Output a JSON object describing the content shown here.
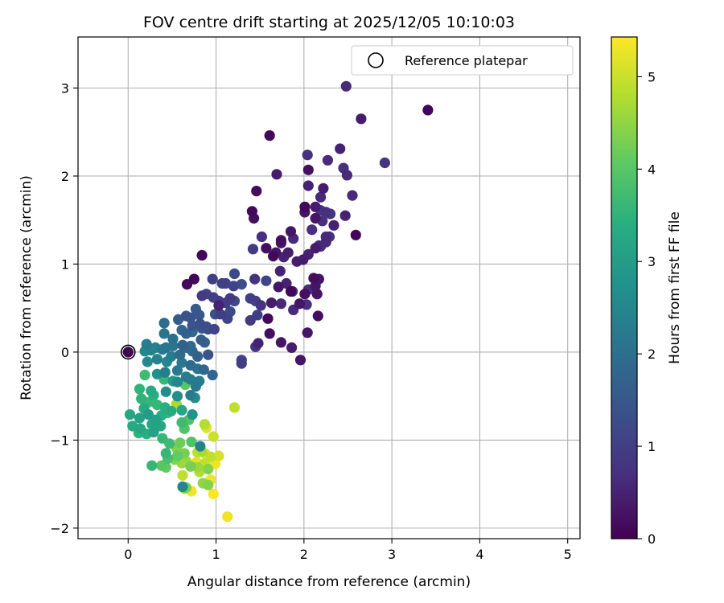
{
  "chart_data": {
    "type": "scatter",
    "title": "FOV centre drift starting at 2025/12/05 10:10:03",
    "xlabel": "Angular distance from reference (arcmin)",
    "ylabel": "Rotation from reference (arcmin)",
    "xlim": [
      -0.57,
      5.14
    ],
    "ylim": [
      -2.12,
      3.58
    ],
    "xticks": [
      0,
      1,
      2,
      3,
      4,
      5
    ],
    "xtick_labels": [
      "0",
      "1",
      "2",
      "3",
      "4",
      "5"
    ],
    "yticks": [
      -2,
      -1,
      0,
      1,
      2,
      3
    ],
    "ytick_labels": [
      "−2",
      "−1",
      "0",
      "1",
      "2",
      "3"
    ],
    "grid": true,
    "legend": {
      "position": "top-right",
      "label": "Reference platepar"
    },
    "colorbar": {
      "label": "Hours from first FF file",
      "min": 0,
      "max": 5.43,
      "ticks": [
        0,
        1,
        2,
        3,
        4,
        5
      ],
      "tick_labels": [
        "0",
        "1",
        "2",
        "3",
        "4",
        "5"
      ],
      "colormap": "viridis"
    },
    "reference_point": {
      "x": 0,
      "y": 0
    },
    "points": [
      [
        3.41,
        2.75,
        0.05
      ],
      [
        2.48,
        3.02,
        0.6
      ],
      [
        2.65,
        2.65,
        0.4
      ],
      [
        2.92,
        2.15,
        0.8
      ],
      [
        1.61,
        2.46,
        0.1
      ],
      [
        2.04,
        2.24,
        0.7
      ],
      [
        2.41,
        2.31,
        0.5
      ],
      [
        2.27,
        2.18,
        0.6
      ],
      [
        2.05,
        2.07,
        0.2
      ],
      [
        2.45,
        2.09,
        0.7
      ],
      [
        2.49,
        2.01,
        0.6
      ],
      [
        1.69,
        2.02,
        0.4
      ],
      [
        2.22,
        1.86,
        0.4
      ],
      [
        2.05,
        1.89,
        0.5
      ],
      [
        2.55,
        1.78,
        0.6
      ],
      [
        1.46,
        1.83,
        0.15
      ],
      [
        2.19,
        1.76,
        0.6
      ],
      [
        2.13,
        1.65,
        0.4
      ],
      [
        2.01,
        1.65,
        0.1
      ],
      [
        2.19,
        1.61,
        0.8
      ],
      [
        2.25,
        1.59,
        0.7
      ],
      [
        2.01,
        1.59,
        0.3
      ],
      [
        1.41,
        1.6,
        0.1
      ],
      [
        2.3,
        1.57,
        0.8
      ],
      [
        2.13,
        1.52,
        0.3
      ],
      [
        1.43,
        1.52,
        0.2
      ],
      [
        2.47,
        1.55,
        0.5
      ],
      [
        2.21,
        1.49,
        0.7
      ],
      [
        2.34,
        1.44,
        0.5
      ],
      [
        2.09,
        1.39,
        0.7
      ],
      [
        1.85,
        1.37,
        0.3
      ],
      [
        1.74,
        1.27,
        0.2
      ],
      [
        1.74,
        1.24,
        0.3
      ],
      [
        2.59,
        1.33,
        0.05
      ],
      [
        1.52,
        1.31,
        0.7
      ],
      [
        2.25,
        1.31,
        0.6
      ],
      [
        2.29,
        1.31,
        0.8
      ],
      [
        1.88,
        1.29,
        0.6
      ],
      [
        2.25,
        1.25,
        0.6
      ],
      [
        2.17,
        1.21,
        0.6
      ],
      [
        2.19,
        1.2,
        0.7
      ],
      [
        2.13,
        1.18,
        0.4
      ],
      [
        1.57,
        1.18,
        0.2
      ],
      [
        1.68,
        1.13,
        0.3
      ],
      [
        1.42,
        1.17,
        0.9
      ],
      [
        1.82,
        1.13,
        0.4
      ],
      [
        2.05,
        1.11,
        0.5
      ],
      [
        1.77,
        1.08,
        0.5
      ],
      [
        1.65,
        1.09,
        0.1
      ],
      [
        1.92,
        1.03,
        0.4
      ],
      [
        0.84,
        1.1,
        0.1
      ],
      [
        1.99,
        1.05,
        0.4
      ],
      [
        1.21,
        0.89,
        1.2
      ],
      [
        1.73,
        0.92,
        0.5
      ],
      [
        1.44,
        0.83,
        0.8
      ],
      [
        1.57,
        0.81,
        1.1
      ],
      [
        1.29,
        0.77,
        1.3
      ],
      [
        1.07,
        0.78,
        1.0
      ],
      [
        0.75,
        0.83,
        0.05
      ],
      [
        1.11,
        0.78,
        1.1
      ],
      [
        1.2,
        0.75,
        1.1
      ],
      [
        0.96,
        0.83,
        1.0
      ],
      [
        0.67,
        0.77,
        0.1
      ],
      [
        1.8,
        0.78,
        0.5
      ],
      [
        2.11,
        0.84,
        0.2
      ],
      [
        2.17,
        0.83,
        0.3
      ],
      [
        1.71,
        0.74,
        0.3
      ],
      [
        1.87,
        0.69,
        0.6
      ],
      [
        2.13,
        0.75,
        0.3
      ],
      [
        2.05,
        0.71,
        0.7
      ],
      [
        0.84,
        0.64,
        0.9
      ],
      [
        0.89,
        0.66,
        1.1
      ],
      [
        0.97,
        0.62,
        1.0
      ],
      [
        1.03,
        0.58,
        1.0
      ],
      [
        2.01,
        0.66,
        0.2
      ],
      [
        1.85,
        0.69,
        0.1
      ],
      [
        2.15,
        0.66,
        0.3
      ],
      [
        1.45,
        0.58,
        1.0
      ],
      [
        1.39,
        0.61,
        1.0
      ],
      [
        1.21,
        0.58,
        1.2
      ],
      [
        1.16,
        0.61,
        0.9
      ],
      [
        1.11,
        0.56,
        1.0
      ],
      [
        1.51,
        0.53,
        0.8
      ],
      [
        1.63,
        0.56,
        0.4
      ],
      [
        1.74,
        0.55,
        0.6
      ],
      [
        1.95,
        0.55,
        0.3
      ],
      [
        2.03,
        0.54,
        0.7
      ],
      [
        1.88,
        0.48,
        0.6
      ],
      [
        1.03,
        0.53,
        0.5
      ],
      [
        0.77,
        0.49,
        1.6
      ],
      [
        0.81,
        0.42,
        1.5
      ],
      [
        0.71,
        0.39,
        1.4
      ],
      [
        0.99,
        0.43,
        1.3
      ],
      [
        1.16,
        0.46,
        1.2
      ],
      [
        1.47,
        0.42,
        1.0
      ],
      [
        1.59,
        0.38,
        0.1
      ],
      [
        1.13,
        0.38,
        1.1
      ],
      [
        1.05,
        0.43,
        1.0
      ],
      [
        1.39,
        0.36,
        0.9
      ],
      [
        2.16,
        0.41,
        0.2
      ],
      [
        0.66,
        0.41,
        1.4
      ],
      [
        0.57,
        0.37,
        1.6
      ],
      [
        0.82,
        0.32,
        1.3
      ],
      [
        0.73,
        0.3,
        1.4
      ],
      [
        0.84,
        0.27,
        1.5
      ],
      [
        0.98,
        0.26,
        1.1
      ],
      [
        0.89,
        0.29,
        1.4
      ],
      [
        0.91,
        0.26,
        1.3
      ],
      [
        0.41,
        0.33,
        1.9
      ],
      [
        0.61,
        0.25,
        1.8
      ],
      [
        0.73,
        0.23,
        1.9
      ],
      [
        0.66,
        0.21,
        1.7
      ],
      [
        0.41,
        0.21,
        2.1
      ],
      [
        0.51,
        0.15,
        2.0
      ],
      [
        0.83,
        0.14,
        1.6
      ],
      [
        0.87,
        0.11,
        1.7
      ],
      [
        1.61,
        0.21,
        0.2
      ],
      [
        2.04,
        0.22,
        0.3
      ],
      [
        1.48,
        0.1,
        0.5
      ],
      [
        1.45,
        0.06,
        0.8
      ],
      [
        1.74,
        0.11,
        0.3
      ],
      [
        1.86,
        0.05,
        0.4
      ],
      [
        1.96,
        -0.09,
        0.3
      ],
      [
        1.29,
        -0.09,
        1.1
      ],
      [
        1.29,
        -0.13,
        1.0
      ],
      [
        0.21,
        0.09,
        2.3
      ],
      [
        0.31,
        0.05,
        2.4
      ],
      [
        0.26,
        0.02,
        2.4
      ],
      [
        0.19,
        0.01,
        2.5
      ],
      [
        0.39,
        0.03,
        2.2
      ],
      [
        0.43,
        0.05,
        2.1
      ],
      [
        0.51,
        0.07,
        2.1
      ],
      [
        0.62,
        0.08,
        1.7
      ],
      [
        0.66,
        0.05,
        1.9
      ],
      [
        0.71,
        0.07,
        1.9
      ],
      [
        0.73,
        0.01,
        1.8
      ],
      [
        0.91,
        -0.03,
        1.4
      ],
      [
        0.79,
        -0.05,
        1.7
      ],
      [
        0.59,
        -0.03,
        1.9
      ],
      [
        0.49,
        -0.05,
        2.3
      ],
      [
        0.33,
        -0.08,
        2.4
      ],
      [
        0.22,
        -0.11,
        2.5
      ],
      [
        0.44,
        -0.11,
        2.5
      ],
      [
        0.61,
        -0.12,
        2.2
      ],
      [
        0.71,
        -0.15,
        1.9
      ],
      [
        0.79,
        -0.19,
        2.1
      ],
      [
        0.86,
        -0.2,
        1.8
      ],
      [
        0.96,
        -0.26,
        1.8
      ],
      [
        0.56,
        -0.21,
        2.2
      ],
      [
        0.42,
        -0.23,
        2.3
      ],
      [
        0.33,
        -0.25,
        2.7
      ],
      [
        0.66,
        -0.28,
        2.3
      ],
      [
        0.71,
        -0.31,
        2.3
      ],
      [
        0.56,
        -0.34,
        2.5
      ],
      [
        0.19,
        -0.26,
        3.7
      ],
      [
        0.41,
        -0.31,
        3.6
      ],
      [
        0.51,
        -0.33,
        2.9
      ],
      [
        0.65,
        -0.37,
        4.0
      ],
      [
        0.77,
        -0.39,
        2.2
      ],
      [
        0.81,
        -0.33,
        2.3
      ],
      [
        0.13,
        -0.42,
        3.5
      ],
      [
        0.26,
        -0.44,
        3.3
      ],
      [
        0.29,
        -0.49,
        3.4
      ],
      [
        0.43,
        -0.45,
        2.6
      ],
      [
        0.56,
        -0.5,
        2.6
      ],
      [
        0.71,
        -0.49,
        2.3
      ],
      [
        0.76,
        -0.52,
        2.6
      ],
      [
        0.55,
        -0.59,
        4.7
      ],
      [
        0.15,
        -0.53,
        3.5
      ],
      [
        0.23,
        -0.57,
        3.6
      ],
      [
        0.33,
        -0.6,
        3.6
      ],
      [
        0.42,
        -0.63,
        3.4
      ],
      [
        0.49,
        -0.67,
        3.3
      ],
      [
        0.61,
        -0.66,
        3.2
      ],
      [
        0.73,
        -0.71,
        2.8
      ],
      [
        0.18,
        -0.64,
        3.3
      ],
      [
        0.02,
        -0.71,
        3.2
      ],
      [
        0.13,
        -0.75,
        3.1
      ],
      [
        0.23,
        -0.71,
        3.0
      ],
      [
        0.31,
        -0.77,
        3.1
      ],
      [
        0.38,
        -0.72,
        3.4
      ],
      [
        0.45,
        -0.69,
        3.7
      ],
      [
        0.27,
        -0.82,
        3.2
      ],
      [
        0.37,
        -0.84,
        3.2
      ],
      [
        0.61,
        -0.8,
        3.7
      ],
      [
        0.69,
        -0.77,
        3.9
      ],
      [
        0.05,
        -0.84,
        3.3
      ],
      [
        0.14,
        -0.87,
        3.2
      ],
      [
        0.29,
        -0.91,
        3.1
      ],
      [
        0.12,
        -0.92,
        3.5
      ],
      [
        0.21,
        -0.93,
        3.4
      ],
      [
        0.64,
        -0.87,
        3.9
      ],
      [
        0.87,
        -0.82,
        4.8
      ],
      [
        0.89,
        -0.86,
        5.2
      ],
      [
        1.21,
        -0.63,
        4.9
      ],
      [
        0.39,
        -0.98,
        3.6
      ],
      [
        0.47,
        -1.04,
        3.7
      ],
      [
        0.59,
        -1.03,
        4.2
      ],
      [
        0.72,
        -1.02,
        3.9
      ],
      [
        0.82,
        -1.07,
        2.4
      ],
      [
        0.97,
        -0.96,
        5.0
      ],
      [
        0.55,
        -1.09,
        4.4
      ],
      [
        0.43,
        -1.15,
        3.6
      ],
      [
        0.56,
        -1.18,
        4.1
      ],
      [
        0.64,
        -1.15,
        4.3
      ],
      [
        0.79,
        -1.14,
        4.9
      ],
      [
        0.84,
        -1.13,
        4.7
      ],
      [
        0.88,
        -1.16,
        5.1
      ],
      [
        0.94,
        -1.19,
        4.9
      ],
      [
        1.03,
        -1.18,
        5.1
      ],
      [
        0.45,
        -1.21,
        3.8
      ],
      [
        0.53,
        -1.22,
        4.4
      ],
      [
        0.61,
        -1.26,
        4.6
      ],
      [
        0.66,
        -1.24,
        4.6
      ],
      [
        0.78,
        -1.25,
        5.2
      ],
      [
        0.87,
        -1.27,
        4.9
      ],
      [
        0.99,
        -1.27,
        5.3
      ],
      [
        0.38,
        -1.29,
        4.0
      ],
      [
        0.27,
        -1.29,
        3.6
      ],
      [
        0.43,
        -1.31,
        4.1
      ],
      [
        0.71,
        -1.3,
        4.3
      ],
      [
        0.79,
        -1.31,
        4.6
      ],
      [
        0.91,
        -1.33,
        4.4
      ],
      [
        0.81,
        -1.36,
        4.8
      ],
      [
        0.62,
        -1.4,
        4.9
      ],
      [
        0.94,
        -1.45,
        5.3
      ],
      [
        0.85,
        -1.49,
        4.5
      ],
      [
        0.91,
        -1.51,
        4.4
      ],
      [
        0.66,
        -1.54,
        4.3
      ],
      [
        0.62,
        -1.53,
        2.5
      ],
      [
        0.72,
        -1.58,
        5.3
      ],
      [
        0.64,
        -1.55,
        4.6
      ],
      [
        0.97,
        -1.61,
        5.4
      ],
      [
        1.13,
        -1.87,
        5.3
      ]
    ]
  }
}
